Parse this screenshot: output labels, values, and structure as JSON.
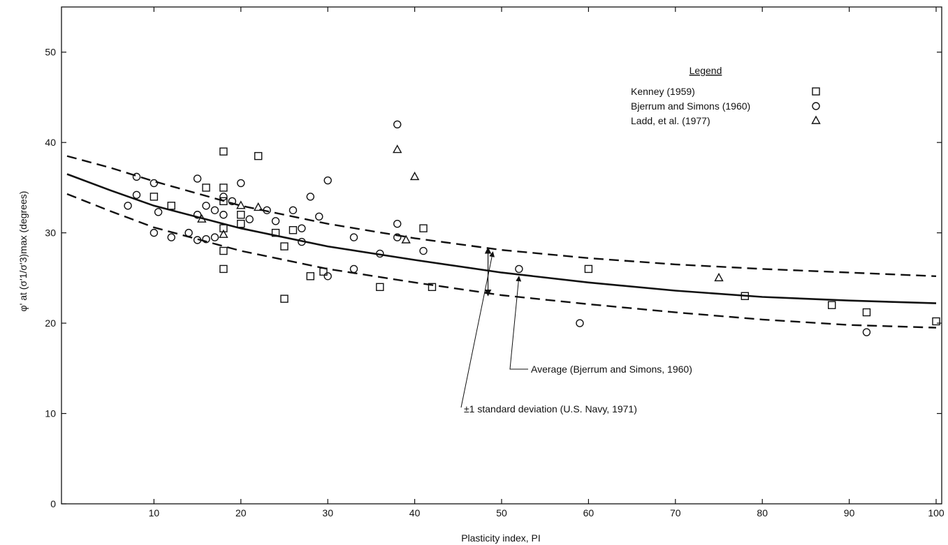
{
  "chart_data": {
    "type": "scatter",
    "title": "",
    "xlabel": "Plasticity index, PI",
    "ylabel": "φ' at (σ'1/σ'3)max (degrees)",
    "xlim": [
      0,
      100
    ],
    "ylim": [
      0,
      55
    ],
    "x_ticks": [
      10,
      20,
      30,
      40,
      50,
      60,
      70,
      80,
      90,
      100
    ],
    "y_ticks": [
      0,
      10,
      20,
      30,
      40,
      50
    ],
    "grid": false,
    "legend": {
      "title": "Legend",
      "placement": "top-right",
      "entries": [
        {
          "label": "Kenney (1959)",
          "marker": "square"
        },
        {
          "label": "Bjerrum and Simons (1960)",
          "marker": "circle"
        },
        {
          "label": "Ladd, et al. (1977)",
          "marker": "triangle"
        }
      ]
    },
    "series": [
      {
        "name": "Kenney (1959)",
        "marker": "square",
        "points": [
          [
            10,
            34.0
          ],
          [
            12,
            33.0
          ],
          [
            16,
            35.0
          ],
          [
            18,
            39.0
          ],
          [
            18,
            35.0
          ],
          [
            18,
            33.5
          ],
          [
            18,
            30.5
          ],
          [
            18,
            28.0
          ],
          [
            18,
            26.0
          ],
          [
            20,
            32.0
          ],
          [
            20,
            31.0
          ],
          [
            22,
            38.5
          ],
          [
            24,
            30.0
          ],
          [
            25,
            28.5
          ],
          [
            25,
            22.7
          ],
          [
            26,
            30.3
          ],
          [
            28,
            25.2
          ],
          [
            29.5,
            25.7
          ],
          [
            36,
            24.0
          ],
          [
            41,
            30.5
          ],
          [
            42,
            24.0
          ],
          [
            60,
            26.0
          ],
          [
            78,
            23.0
          ],
          [
            88,
            22.0
          ],
          [
            92,
            21.2
          ],
          [
            100,
            20.2
          ]
        ]
      },
      {
        "name": "Bjerrum and Simons (1960)",
        "marker": "circle",
        "points": [
          [
            7,
            33.0
          ],
          [
            8,
            36.2
          ],
          [
            8,
            34.2
          ],
          [
            10,
            35.5
          ],
          [
            10,
            30.0
          ],
          [
            10.5,
            32.3
          ],
          [
            12,
            29.5
          ],
          [
            14,
            30.0
          ],
          [
            15,
            36.0
          ],
          [
            15,
            32.0
          ],
          [
            15,
            29.2
          ],
          [
            16,
            33.0
          ],
          [
            16,
            29.3
          ],
          [
            17,
            32.5
          ],
          [
            17,
            29.5
          ],
          [
            18,
            34.0
          ],
          [
            18,
            32.0
          ],
          [
            19,
            33.5
          ],
          [
            20,
            35.5
          ],
          [
            21,
            31.5
          ],
          [
            23,
            32.5
          ],
          [
            24,
            31.3
          ],
          [
            26,
            32.5
          ],
          [
            27,
            30.5
          ],
          [
            27,
            29.0
          ],
          [
            28,
            34.0
          ],
          [
            29,
            31.8
          ],
          [
            30,
            35.8
          ],
          [
            30,
            25.2
          ],
          [
            33,
            29.5
          ],
          [
            33,
            26.0
          ],
          [
            36,
            27.7
          ],
          [
            38,
            42.0
          ],
          [
            38,
            31.0
          ],
          [
            38,
            29.5
          ],
          [
            41,
            28.0
          ],
          [
            52,
            26.0
          ],
          [
            59,
            20.0
          ],
          [
            92,
            19.0
          ]
        ]
      },
      {
        "name": "Ladd, et al. (1977)",
        "marker": "triangle",
        "points": [
          [
            15.5,
            31.5
          ],
          [
            18,
            29.8
          ],
          [
            20,
            33.0
          ],
          [
            22,
            32.8
          ],
          [
            38,
            39.2
          ],
          [
            39,
            29.2
          ],
          [
            40,
            36.2
          ],
          [
            75,
            25.0
          ]
        ]
      }
    ],
    "curves": [
      {
        "name": "Average (Bjerrum and Simons, 1960)",
        "style": "solid",
        "points": [
          [
            0,
            36.5
          ],
          [
            5,
            34.7
          ],
          [
            10,
            33.0
          ],
          [
            20,
            30.5
          ],
          [
            30,
            28.5
          ],
          [
            40,
            27.0
          ],
          [
            50,
            25.6
          ],
          [
            60,
            24.5
          ],
          [
            70,
            23.6
          ],
          [
            80,
            22.9
          ],
          [
            90,
            22.5
          ],
          [
            100,
            22.2
          ]
        ]
      },
      {
        "name": "+1 standard deviation (U.S. Navy, 1971)",
        "style": "dashed",
        "points": [
          [
            0,
            38.5
          ],
          [
            5,
            37.2
          ],
          [
            10,
            35.7
          ],
          [
            20,
            33.0
          ],
          [
            30,
            31.0
          ],
          [
            40,
            29.4
          ],
          [
            50,
            28.1
          ],
          [
            60,
            27.2
          ],
          [
            70,
            26.5
          ],
          [
            80,
            26.0
          ],
          [
            90,
            25.6
          ],
          [
            100,
            25.2
          ]
        ]
      },
      {
        "name": "-1 standard deviation (U.S. Navy, 1971)",
        "style": "dashed",
        "points": [
          [
            0,
            34.3
          ],
          [
            5,
            32.4
          ],
          [
            10,
            30.6
          ],
          [
            20,
            28.0
          ],
          [
            30,
            26.0
          ],
          [
            40,
            24.5
          ],
          [
            50,
            23.1
          ],
          [
            60,
            22.1
          ],
          [
            70,
            21.2
          ],
          [
            80,
            20.4
          ],
          [
            90,
            19.8
          ],
          [
            100,
            19.5
          ]
        ]
      }
    ],
    "annotations": [
      {
        "text": "Average (Bjerrum and Simons, 1960)",
        "points_to": [
          52,
          25.5
        ]
      },
      {
        "text": "±1 standard deviation (U.S. Navy, 1971)",
        "points_to": [
          49,
          28.2
        ],
        "points_to_2": [
          49,
          23.2
        ]
      }
    ]
  }
}
